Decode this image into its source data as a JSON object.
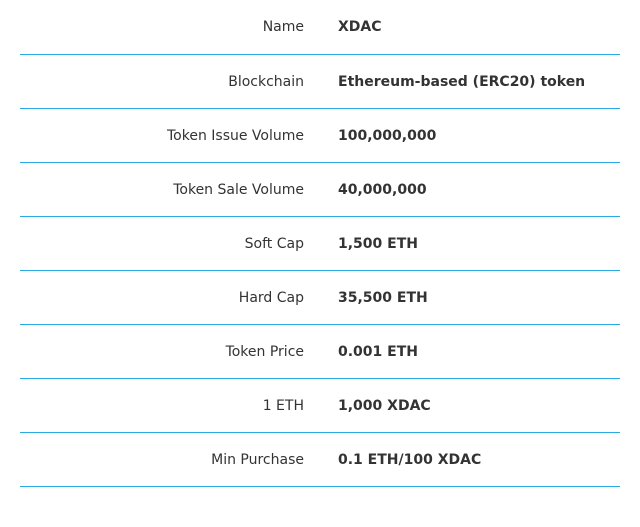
{
  "rows": [
    {
      "label": "Name",
      "value": "XDAC"
    },
    {
      "label": "Blockchain",
      "value": "Ethereum-based (ERC20) token"
    },
    {
      "label": "Token Issue Volume",
      "value": "100,000,000"
    },
    {
      "label": "Token Sale Volume",
      "value": "40,000,000"
    },
    {
      "label": "Soft Cap",
      "value": "1,500 ETH"
    },
    {
      "label": "Hard Cap",
      "value": "35,500 ETH"
    },
    {
      "label": "Token Price",
      "value": "0.001 ETH"
    },
    {
      "label": "1 ETH",
      "value": "1,000 XDAC"
    },
    {
      "label": "Min Purchase",
      "value": "0.1 ETH/100 XDAC"
    }
  ],
  "colors": {
    "divider": "#29abe2",
    "text": "#333333"
  }
}
